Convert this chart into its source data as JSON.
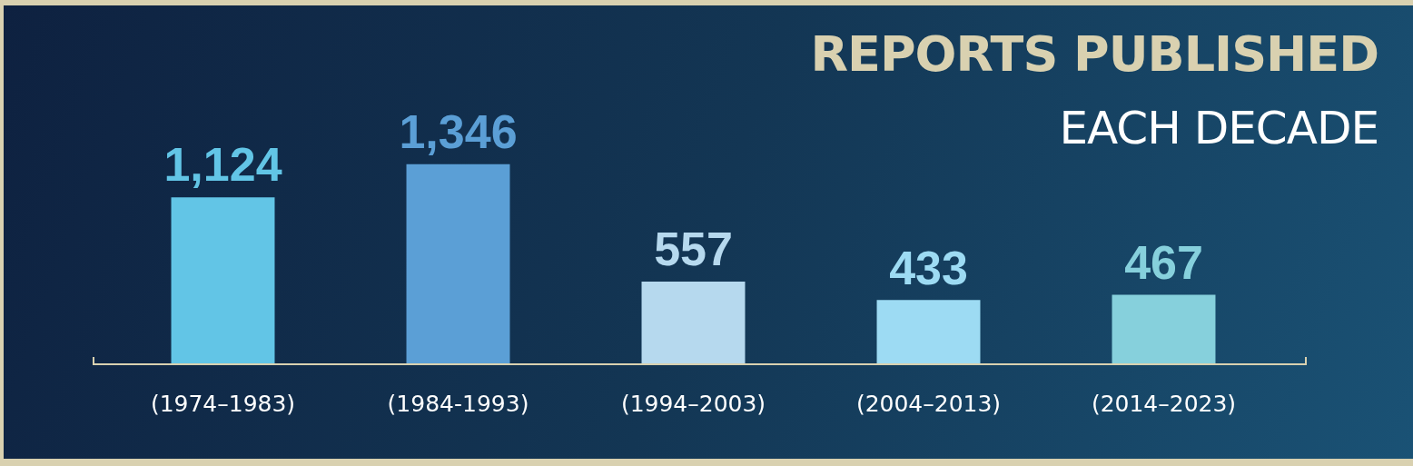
{
  "chart_data": {
    "type": "bar",
    "title": "REPORTS PUBLISHED",
    "subtitle": "EACH DECADE",
    "categories": [
      "(1974–1983)",
      "(1984-1993)",
      "(1994–2003)",
      "(2004–2013)",
      "(2014–2023)"
    ],
    "values": [
      1124,
      1346,
      557,
      433,
      467
    ],
    "colors": [
      "#62c5e6",
      "#5b9fd6",
      "#b6d9ee",
      "#9ddbf3",
      "#86d0dc"
    ],
    "value_labels": [
      "1,124",
      "1,346",
      "557",
      "433",
      "467"
    ],
    "grid": false,
    "legend": false
  }
}
